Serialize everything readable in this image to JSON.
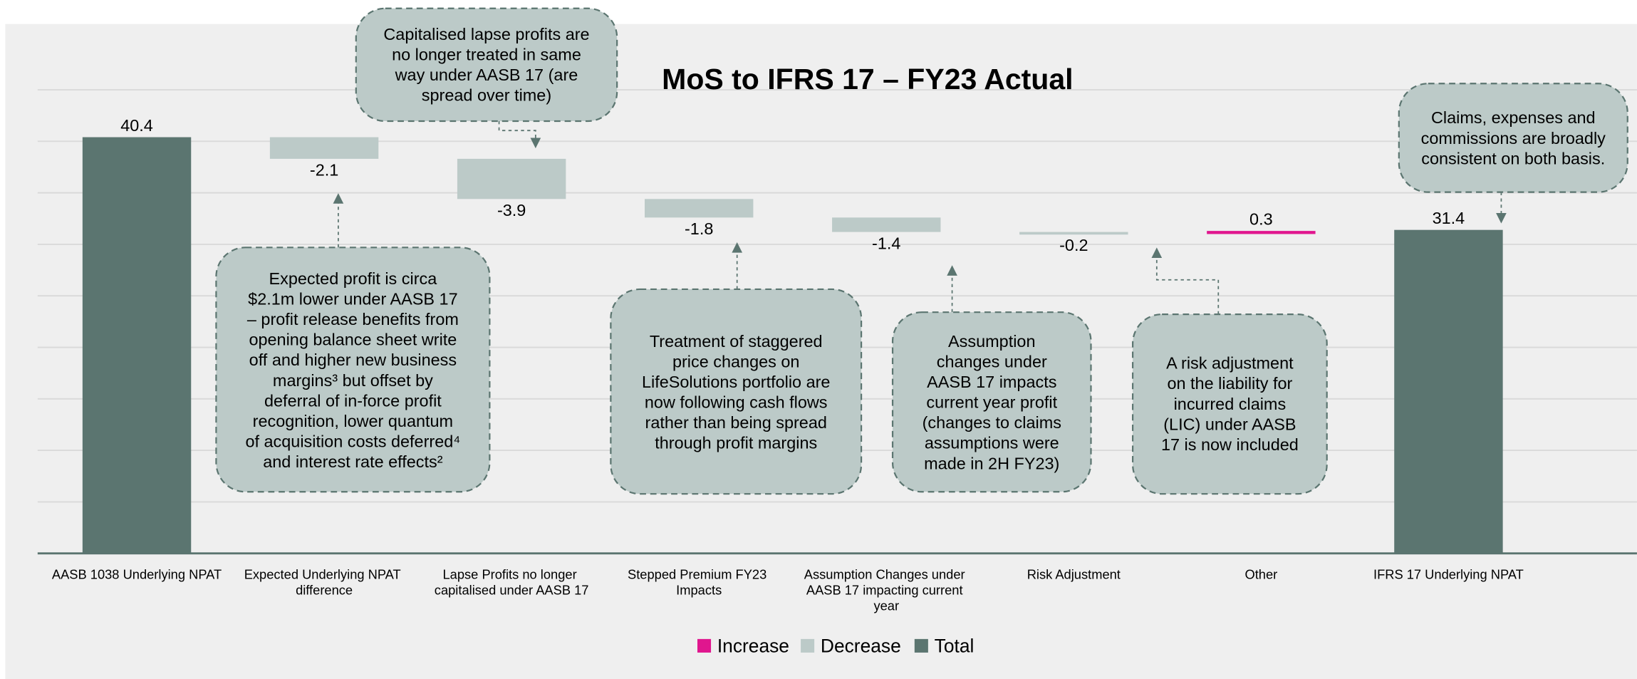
{
  "chart_data": {
    "type": "waterfall",
    "title": "MoS to IFRS 17 – FY23 Actual",
    "categories": [
      "AASB 1038 Underlying NPAT",
      "Expected Underlying NPAT difference",
      "Lapse Profits no longer capitalised under AASB 17",
      "Stepped Premium FY23 Impacts",
      "Assumption Changes under AASB 17 impacting current year",
      "Risk Adjustment",
      "Other",
      "IFRS 17 Underlying NPAT"
    ],
    "values": [
      40.4,
      -2.1,
      -3.9,
      -1.8,
      -1.4,
      -0.2,
      0.3,
      31.4
    ],
    "total_indices": [
      0,
      7
    ],
    "legend": [
      {
        "name": "Increase",
        "color": "#e0168e"
      },
      {
        "name": "Decrease",
        "color": "#bccac8"
      },
      {
        "name": "Total",
        "color": "#5b7570"
      }
    ],
    "ylim": [
      0,
      45
    ],
    "yticks": [
      0,
      5,
      10,
      15,
      20,
      25,
      30,
      35,
      40,
      45
    ],
    "grid": true,
    "annotations": [
      {
        "lines": [
          "Capitalised lapse profits are",
          "no longer treated in same",
          "way under AASB 17 (are",
          "spread over time)"
        ]
      },
      {
        "lines": [
          "Expected profit is circa",
          "$2.1m lower under AASB 17",
          "– profit release benefits from",
          "opening balance sheet write",
          "off and higher new business",
          "margins³ but offset by",
          "deferral of in-force profit",
          "recognition, lower quantum",
          "of acquisition costs deferred⁴",
          "and interest rate effects²"
        ]
      },
      {
        "lines": [
          "Treatment of staggered",
          "price changes on",
          "LifeSolutions portfolio are",
          "now following cash flows",
          "rather than being spread",
          "through profit margins"
        ]
      },
      {
        "lines": [
          "Assumption",
          "changes under",
          "AASB 17 impacts",
          "current year profit",
          "(changes to claims",
          "assumptions were",
          "made in 2H FY23)"
        ]
      },
      {
        "lines": [
          "A risk adjustment",
          "on the liability for",
          "incurred claims",
          "(LIC) under AASB",
          "17 is now included"
        ]
      },
      {
        "lines": [
          "Claims, expenses and",
          "commissions are broadly",
          "consistent on both basis."
        ]
      }
    ]
  }
}
